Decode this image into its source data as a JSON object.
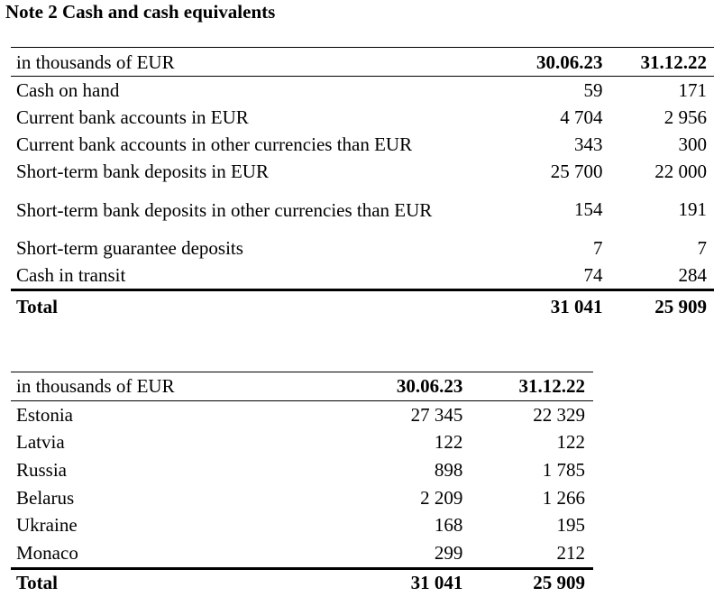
{
  "title": "Note 2 Cash and cash equivalents",
  "table1": {
    "header": [
      "in thousands of EUR",
      "30.06.23",
      "31.12.22"
    ],
    "rows": [
      [
        "Cash on hand",
        "59",
        "171"
      ],
      [
        "Current bank accounts in EUR",
        "4 704",
        "2 956"
      ],
      [
        "Current bank accounts in other currencies than EUR",
        "343",
        "300"
      ],
      [
        "Short-term bank deposits in EUR",
        "25 700",
        "22 000"
      ],
      [
        "Short-term bank deposits in other currencies than EUR",
        "154",
        "191"
      ],
      [
        "Short-term guarantee deposits",
        "7",
        "7"
      ],
      [
        "Cash in transit",
        "74",
        "284"
      ]
    ],
    "total": [
      "Total",
      "31 041",
      "25 909"
    ]
  },
  "table2": {
    "header": [
      "in thousands of EUR",
      "30.06.23",
      "31.12.22"
    ],
    "rows": [
      [
        "Estonia",
        "27 345",
        "22 329"
      ],
      [
        "Latvia",
        "122",
        "122"
      ],
      [
        "Russia",
        "898",
        "1 785"
      ],
      [
        "Belarus",
        "2 209",
        "1 266"
      ],
      [
        "Ukraine",
        "168",
        "195"
      ],
      [
        "Monaco",
        "299",
        "212"
      ]
    ],
    "total": [
      "Total",
      "31 041",
      "25 909"
    ]
  }
}
